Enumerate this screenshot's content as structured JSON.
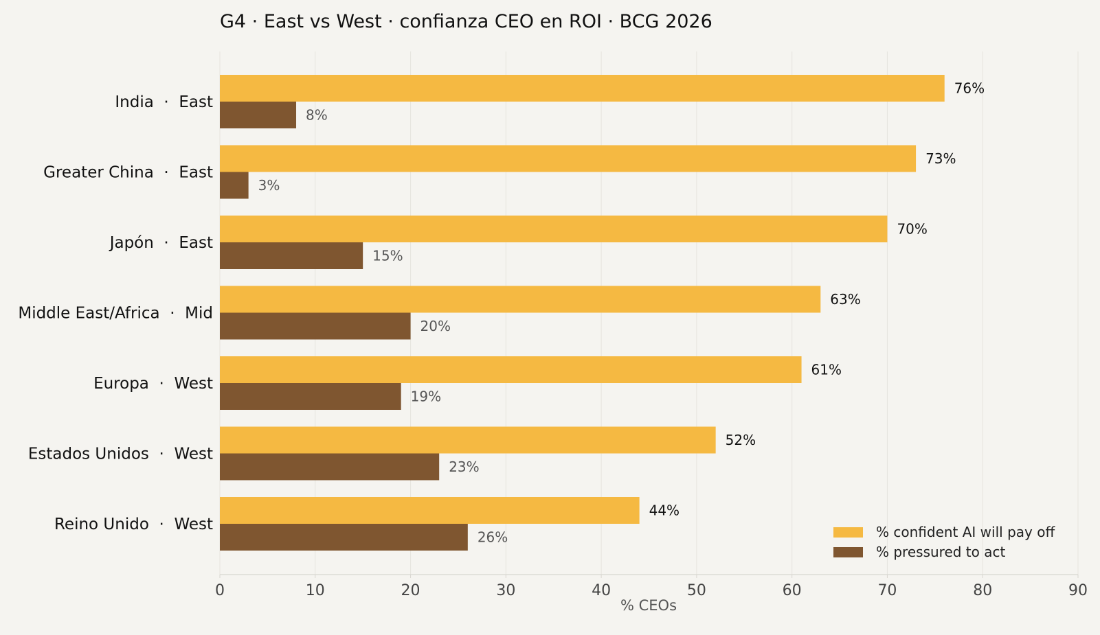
{
  "chart_data": {
    "type": "bar",
    "orientation": "horizontal",
    "title": "G4 · East vs West · confianza CEO en ROI · BCG 2026",
    "xlabel": "% CEOs",
    "ylabel": "",
    "xlim": [
      0,
      90
    ],
    "xticks": [
      0,
      10,
      20,
      30,
      40,
      50,
      60,
      70,
      80,
      90
    ],
    "grid": "vertical",
    "legend_position": "bottom-right",
    "categories": [
      "India  ·  East",
      "Greater China  ·  East",
      "Japón  ·  East",
      "Middle East/Africa  ·  Mid",
      "Europa  ·  West",
      "Estados Unidos  ·  West",
      "Reino Unido  ·  West"
    ],
    "series": [
      {
        "name": "% confident AI will pay off",
        "color": "#f5b942",
        "label_color": "#111111",
        "values": [
          76,
          73,
          70,
          63,
          61,
          52,
          44
        ],
        "labels": [
          "76%",
          "73%",
          "70%",
          "63%",
          "61%",
          "52%",
          "44%"
        ]
      },
      {
        "name": "% pressured to act",
        "color": "#7f5630",
        "label_color": "#555555",
        "values": [
          8,
          3,
          15,
          20,
          19,
          23,
          26
        ],
        "labels": [
          "8%",
          "3%",
          "15%",
          "20%",
          "19%",
          "23%",
          "26%"
        ]
      }
    ]
  },
  "colors": {
    "background": "#f5f4f0",
    "grid": "#e6e4de",
    "axis": "#d8d6d0",
    "tick_label": "#444444",
    "category_label": "#111111"
  }
}
